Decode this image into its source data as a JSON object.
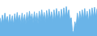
{
  "chart_data": {
    "type": "area",
    "values": [
      28,
      18,
      32,
      20,
      35,
      22,
      30,
      18,
      33,
      19,
      31,
      17,
      34,
      21,
      36,
      22,
      32,
      19,
      35,
      20,
      33,
      18,
      36,
      22,
      38,
      24,
      34,
      20,
      37,
      22,
      35,
      19,
      38,
      23,
      40,
      25,
      36,
      21,
      39,
      23,
      41,
      26,
      37,
      22,
      40,
      24,
      42,
      27,
      38,
      23,
      41,
      25,
      43,
      28,
      45,
      30,
      40,
      24,
      28,
      8,
      5,
      22,
      14,
      35,
      20,
      38,
      24,
      40,
      25,
      42,
      27,
      38,
      22,
      41,
      26,
      43,
      28,
      44,
      29,
      42
    ],
    "color": "#6ab4e8",
    "ylim": [
      0,
      55
    ],
    "grid": false,
    "tick_labels": false
  }
}
